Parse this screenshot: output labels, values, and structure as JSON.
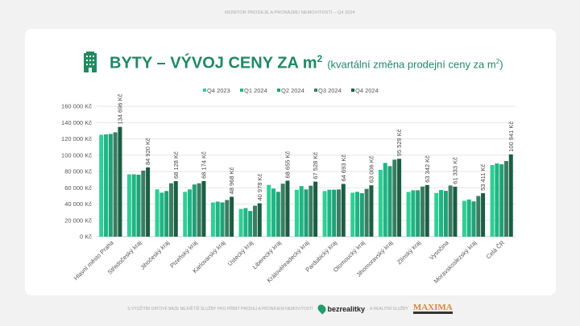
{
  "header": {
    "top_text": "MONITOR PRODEJE A PRONÁJMU NEMOVITOSTÍ – Q4 2024"
  },
  "title": {
    "main": "BYTY – VÝVOJ CENY ZA m",
    "main_sup": "2",
    "sub": "(kvartální změna prodejní ceny za m",
    "sub_sup": "2",
    ")": ")",
    "icon": "building-icon"
  },
  "footer": {
    "text": "S VYUŽITÍM DATOVÉ BÁZE NEJVĚTŠÍ SLUŽBY PRO PŘÍMÝ PRODEJ A PRONÁJEM NEMOVITOSTÍ",
    "brand": "bezrealitky",
    "and_text": "A REALITNÍ SLUŽBY",
    "partner": "MAXIMA"
  },
  "chart_data": {
    "type": "bar",
    "ylim": [
      0,
      160000
    ],
    "yticks": [
      0,
      20000,
      40000,
      60000,
      80000,
      100000,
      120000,
      140000,
      160000
    ],
    "ytick_labels": [
      "0 Kč",
      "20 000 Kč",
      "40 000 Kč",
      "60 000 Kč",
      "80 000 Kč",
      "100 000 Kč",
      "120 000 Kč",
      "140 000 Kč",
      "160 000 Kč"
    ],
    "grid": true,
    "legend_position": "top",
    "categories": [
      "Hlavní město Praha",
      "Středočeský kraj",
      "Jihočeský kraj",
      "Plzeňský kraj",
      "Karlovarský kraj",
      "Ústecký kraj",
      "Liberecký kraj",
      "Královéhradecký kraj",
      "Pardubický kraj",
      "Olomoucký kraj",
      "Jihomoravský kraj",
      "Zlínský kraj",
      "Vysočina",
      "Moravskoslezský kraj",
      "Celá ČR"
    ],
    "series": [
      {
        "name": "Q4 2023",
        "color": "#2ecf96",
        "values": [
          125000,
          76500,
          58000,
          55000,
          42000,
          34000,
          63500,
          57600,
          56000,
          54000,
          82000,
          54900,
          53600,
          44000,
          87900
        ]
      },
      {
        "name": "Q1 2024",
        "color": "#1db784",
        "values": [
          125500,
          76500,
          54000,
          58000,
          43000,
          35000,
          59000,
          62000,
          57600,
          55000,
          90500,
          56900,
          57200,
          45600,
          89800
        ]
      },
      {
        "name": "Q2 2024",
        "color": "#22a077",
        "values": [
          126000,
          76000,
          56000,
          64000,
          42000,
          31500,
          55000,
          58000,
          57600,
          53300,
          86600,
          56900,
          56200,
          43300,
          88800
        ]
      },
      {
        "name": "Q3 2024",
        "color": "#3a7d63",
        "values": [
          128000,
          81000,
          65500,
          65500,
          45000,
          38000,
          65000,
          62500,
          57900,
          58600,
          94500,
          61500,
          62800,
          49900,
          92800
        ]
      },
      {
        "name": "Q4 2024",
        "color": "#1b5e43",
        "values": [
          134696,
          84920,
          68128,
          68174,
          48968,
          40978,
          68655,
          67528,
          64693,
          63006,
          95529,
          63342,
          61333,
          53411,
          100941
        ]
      }
    ],
    "data_labels": [
      "134 696 Kč",
      "84 920 Kč",
      "68 128 Kč",
      "68 174 Kč",
      "48 968 Kč",
      "40 978 Kč",
      "68 655 Kč",
      "67 528 Kč",
      "64 693 Kč",
      "63 006 Kč",
      "95 529 Kč",
      "63 342 Kč",
      "61 333 Kč",
      "53 411 Kč",
      "100 941 Kč"
    ]
  }
}
